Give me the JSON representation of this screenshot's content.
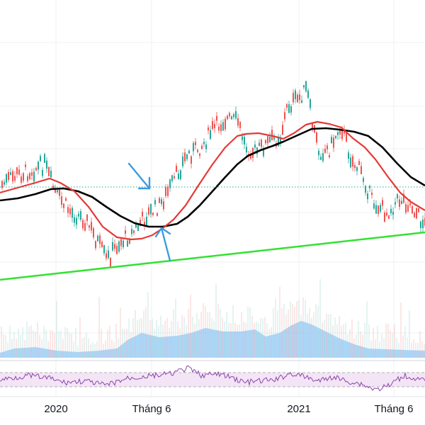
{
  "chart_data": {
    "type": "candlestick",
    "x_ticks": [
      "2020",
      "Tháng 6",
      "2021",
      "Tháng 6"
    ],
    "grid": true,
    "colors": {
      "up": "#26a69a",
      "down": "#ef5350",
      "ma_short": "#e53935",
      "ma_long": "#000000",
      "trendline": "#33e133",
      "horizontal_level": "#26a69a",
      "arrows": "#3d9bdf",
      "volume_area": "#90caf9",
      "rsi_line": "#8e44ad",
      "rsi_band": "#f3e5f5"
    },
    "series": [
      {
        "name": "",
        "kind": "candles"
      },
      {
        "name": "",
        "kind": "ma_short"
      },
      {
        "name": "",
        "kind": "ma_long"
      },
      {
        "name": "",
        "kind": "volume"
      },
      {
        "name": "",
        "kind": "rsi"
      }
    ],
    "annotations": [
      {
        "kind": "rising-trendline"
      },
      {
        "kind": "horizontal-dotted-level"
      },
      {
        "kind": "arrow-down-right"
      },
      {
        "kind": "arrow-up"
      }
    ]
  }
}
